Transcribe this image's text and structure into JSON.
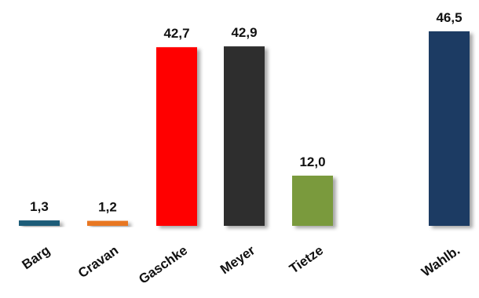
{
  "chart_data": {
    "type": "bar",
    "title": "",
    "xlabel": "",
    "ylabel": "",
    "categories": [
      "Barg",
      "Cravan",
      "Gaschke",
      "Meyer",
      "Tietze",
      "Wahlb."
    ],
    "values": [
      1.3,
      1.2,
      42.7,
      42.9,
      12.0,
      46.5
    ],
    "value_labels": [
      "1,3",
      "1,2",
      "42,7",
      "42,9",
      "12,0",
      "46,5"
    ],
    "colors": [
      "#1f5b78",
      "#e87722",
      "#ff0000",
      "#2d2d2d",
      "#7a9a3c",
      "#1c3a63"
    ],
    "ylim": [
      0,
      50
    ],
    "grid": false,
    "legend": "none"
  }
}
